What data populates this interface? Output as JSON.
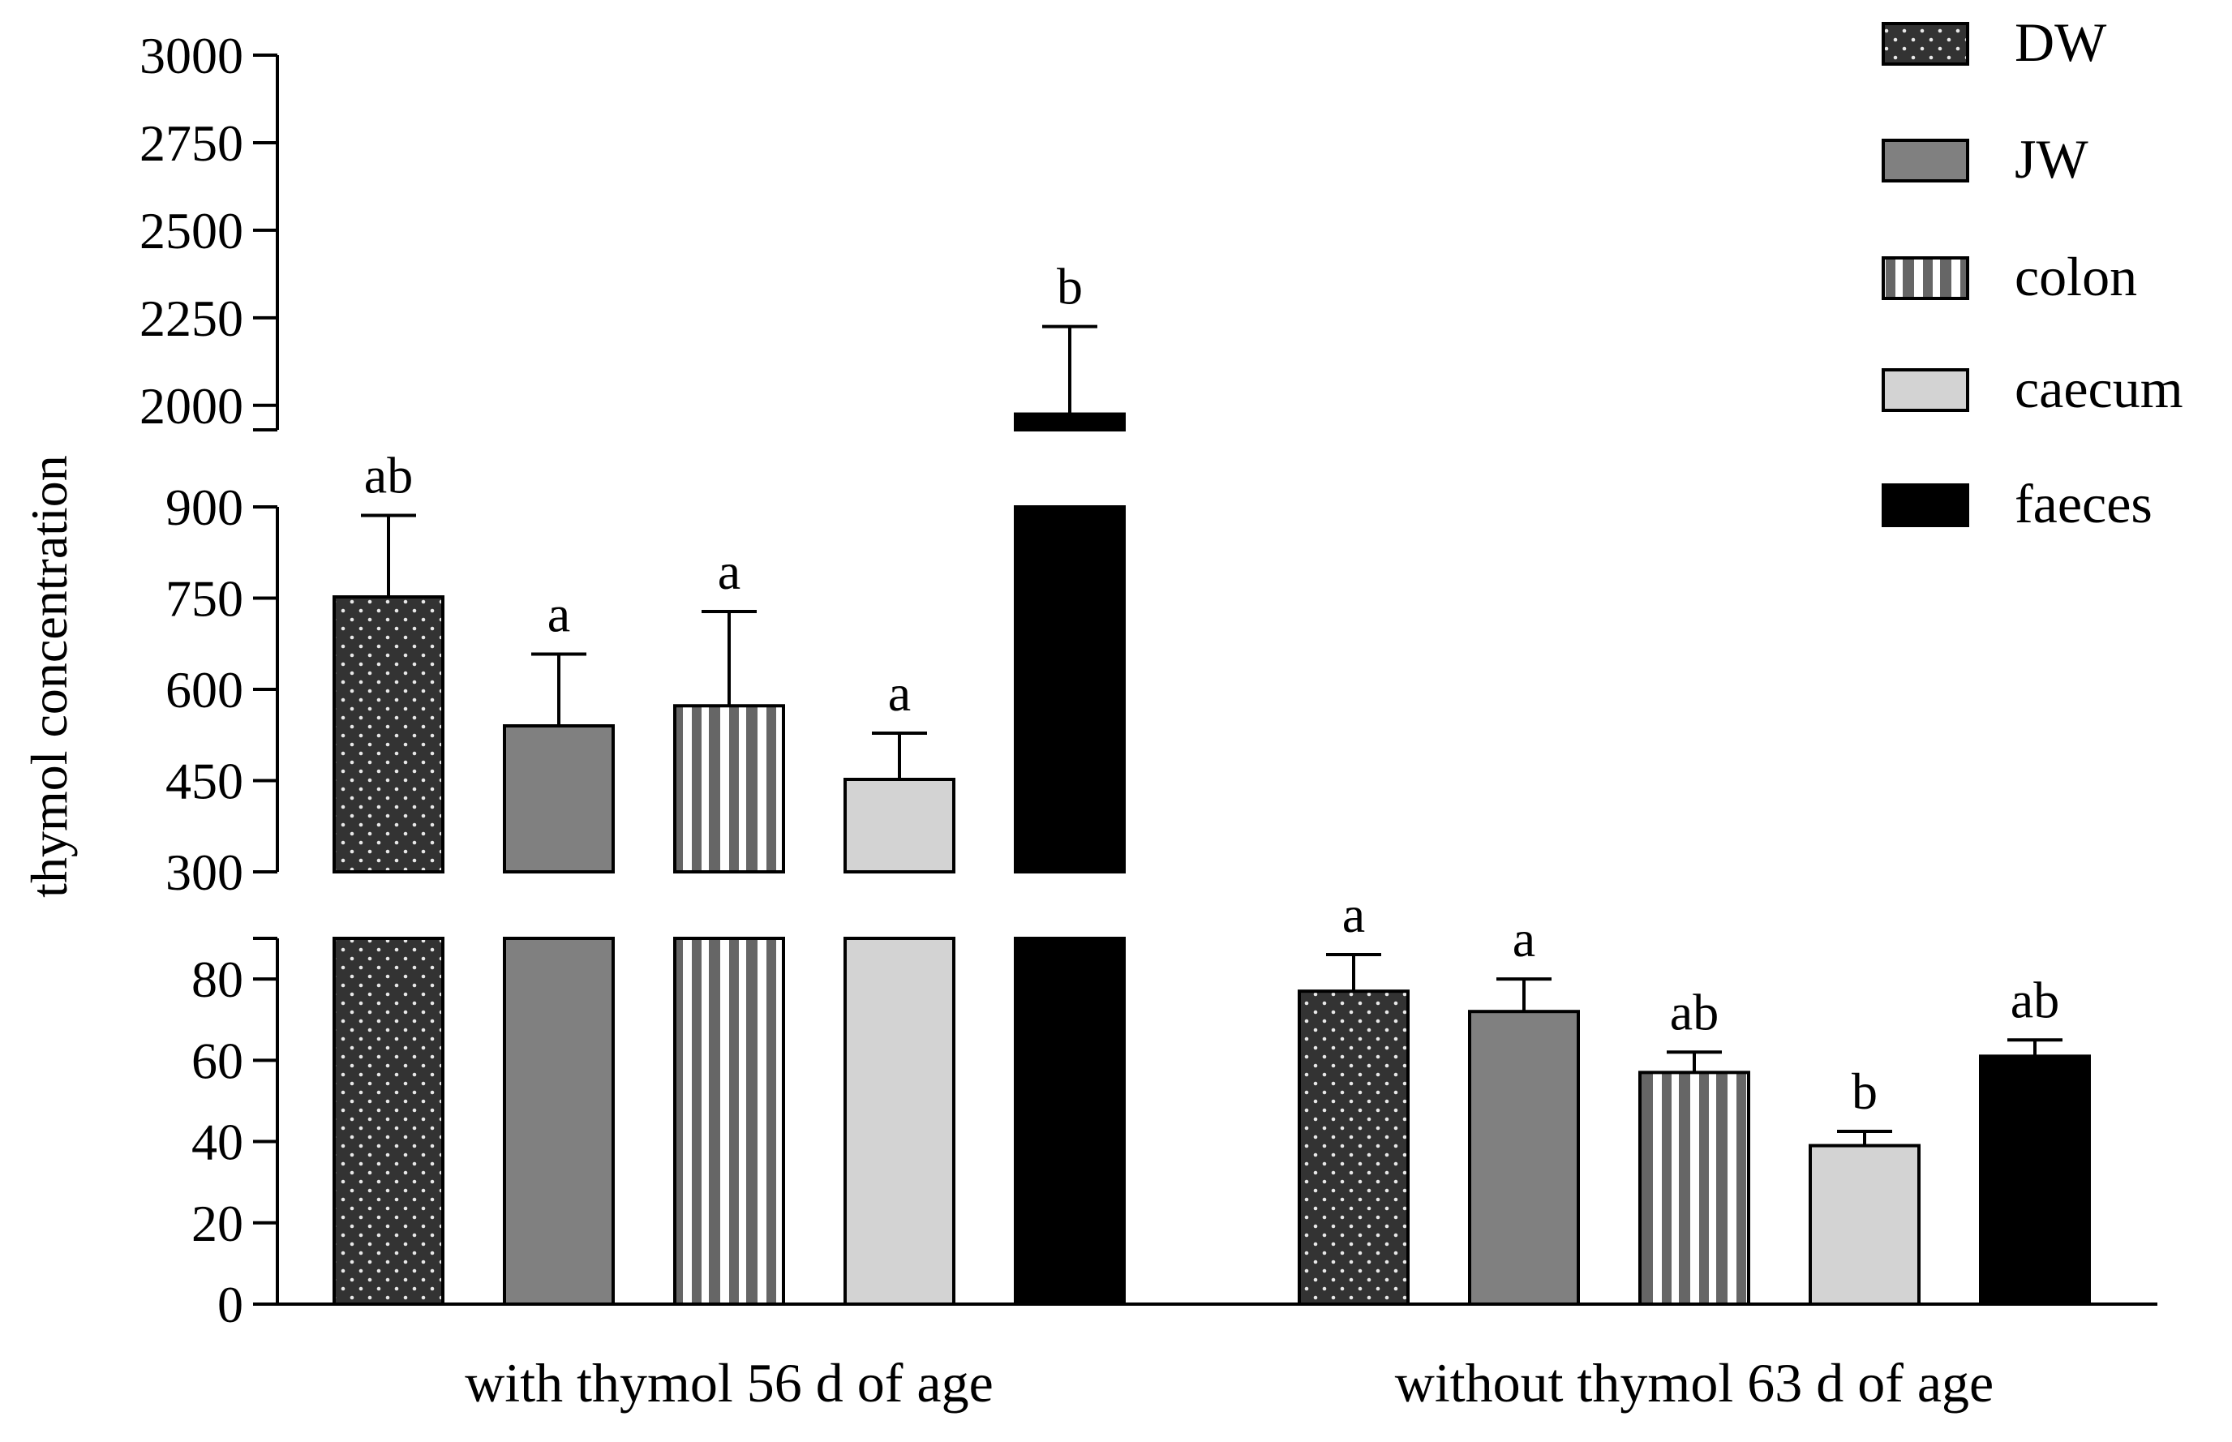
{
  "chart_data": {
    "type": "bar",
    "title": "",
    "xlabel": "",
    "ylabel": "thymol concentration",
    "axis_segments": [
      {
        "range": [
          0,
          90
        ],
        "ticks": [
          0,
          20,
          40,
          60,
          80
        ]
      },
      {
        "range": [
          300,
          900
        ],
        "ticks": [
          300,
          450,
          600,
          750,
          900
        ]
      },
      {
        "range": [
          1930,
          3000
        ],
        "ticks": [
          2000,
          2250,
          2500,
          2750,
          3000
        ]
      }
    ],
    "y_tick_labels": [
      "0",
      "20",
      "40",
      "60",
      "80",
      "300",
      "450",
      "600",
      "750",
      "900",
      "2000",
      "2250",
      "2500",
      "2750",
      "3000"
    ],
    "categories": [
      "with thymol 56 d of age",
      "without thymol 63 d of age"
    ],
    "series": [
      {
        "name": "DW",
        "values": [
          752,
          77
        ],
        "errors": [
          134,
          9
        ],
        "labels": [
          "ab",
          "a"
        ],
        "color": "#333333",
        "pattern": "dots"
      },
      {
        "name": "JW",
        "values": [
          540,
          72
        ],
        "errors": [
          118,
          8
        ],
        "labels": [
          "a",
          "a"
        ],
        "color": "#808080",
        "pattern": "solid"
      },
      {
        "name": "colon",
        "values": [
          573,
          57
        ],
        "errors": [
          155,
          5
        ],
        "labels": [
          "a",
          "ab"
        ],
        "color": "#666666",
        "pattern": "stripes"
      },
      {
        "name": "caecum",
        "values": [
          452,
          39
        ],
        "errors": [
          76,
          3.5
        ],
        "labels": [
          "a",
          "b"
        ],
        "color": "#d3d3d3",
        "pattern": "solid"
      },
      {
        "name": "faeces",
        "values": [
          1975,
          61
        ],
        "errors": [
          250,
          4
        ],
        "labels": [
          "b",
          "ab"
        ],
        "color": "#000000",
        "pattern": "solid"
      }
    ],
    "grid": false,
    "legend": "top-right"
  }
}
